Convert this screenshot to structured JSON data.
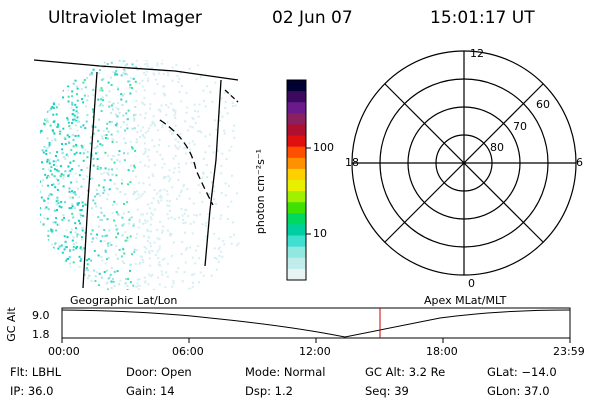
{
  "header": {
    "instrument": "Ultraviolet Imager",
    "date": "02 Jun 07",
    "time": "15:01:17 UT"
  },
  "colorbar": {
    "label": "photon cm⁻²s⁻¹",
    "ticks": [
      "100",
      "10"
    ],
    "colors": [
      "#000033",
      "#3b0a5e",
      "#6a1a8a",
      "#8a2060",
      "#b01030",
      "#e01010",
      "#ff5000",
      "#ff9000",
      "#ffd000",
      "#e8f000",
      "#a0f000",
      "#40e000",
      "#00d860",
      "#00d0a0",
      "#40e0d0",
      "#90e8e0",
      "#c0ecec",
      "#e8f4f4"
    ]
  },
  "polar": {
    "mlt_labels": {
      "top": "12",
      "left": "18",
      "right": "6",
      "bottom": "0"
    },
    "lat_labels": [
      "60",
      "70",
      "80"
    ]
  },
  "timeline": {
    "left_title": "Geographic Lat/Lon",
    "right_title": "Apex MLat/MLT",
    "ylabel": "GC Alt",
    "yticks": [
      "9.0",
      "1.8"
    ],
    "xticks": [
      "00:00",
      "06:00",
      "12:00",
      "18:00",
      "23:59"
    ],
    "marker_time": "15:01"
  },
  "info": {
    "filter": "Flt: LBHL",
    "ip": "IP: 36.0",
    "door": "Door: Open",
    "gain": "Gain: 14",
    "mode": "Mode: Normal",
    "dsp": "Dsp:    1.2",
    "gc_alt": "GC Alt: 3.2 Re",
    "seq": "Seq: 39",
    "glat": "GLat: −14.0",
    "glon": "GLon:  37.0"
  }
}
